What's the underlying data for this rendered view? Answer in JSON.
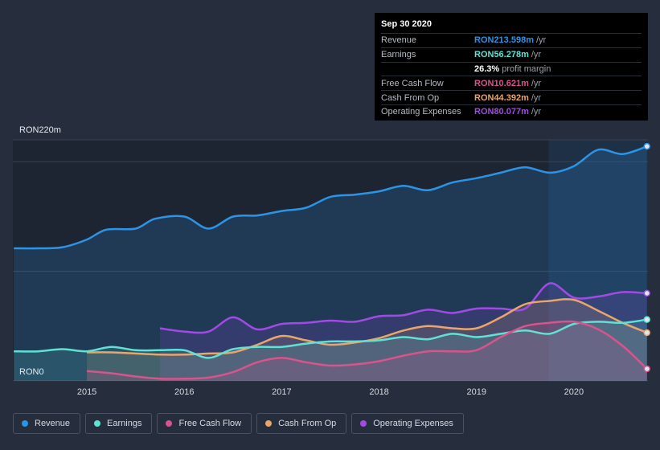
{
  "tooltip": {
    "date": "Sep 30 2020",
    "rows": [
      {
        "label": "Revenue",
        "value": "RON213.598m",
        "unit": "/yr",
        "color": "#2c94e6"
      },
      {
        "label": "Earnings",
        "value": "RON56.278m",
        "unit": "/yr",
        "color": "#5fe2d4"
      },
      {
        "label": "",
        "value": "26.3%",
        "unit": "profit margin",
        "color": "#ffffff"
      },
      {
        "label": "Free Cash Flow",
        "value": "RON10.621m",
        "unit": "/yr",
        "color": "#d9538c"
      },
      {
        "label": "Cash From Op",
        "value": "RON44.392m",
        "unit": "/yr",
        "color": "#e8a66a"
      },
      {
        "label": "Operating Expenses",
        "value": "RON80.077m",
        "unit": "/yr",
        "color": "#a24ae6"
      }
    ]
  },
  "chart_data": {
    "type": "area",
    "ylabel_top": "RON220m",
    "ylabel_bottom": "RON0",
    "ylim": [
      0,
      220
    ],
    "xlim": [
      2014.24,
      2020.76
    ],
    "x_ticks": [
      "2015",
      "2016",
      "2017",
      "2018",
      "2019",
      "2020"
    ],
    "grid": true,
    "legend_position": "bottom",
    "series": [
      {
        "name": "Revenue",
        "color": "#2c94e6",
        "points": [
          [
            2014.25,
            121
          ],
          [
            2014.5,
            121
          ],
          [
            2014.75,
            122
          ],
          [
            2015.0,
            129
          ],
          [
            2015.2,
            138
          ],
          [
            2015.5,
            139
          ],
          [
            2015.7,
            148
          ],
          [
            2016.0,
            150
          ],
          [
            2016.25,
            139
          ],
          [
            2016.5,
            150
          ],
          [
            2016.75,
            151
          ],
          [
            2017.0,
            155
          ],
          [
            2017.25,
            158
          ],
          [
            2017.5,
            168
          ],
          [
            2017.75,
            170
          ],
          [
            2018.0,
            173
          ],
          [
            2018.25,
            178
          ],
          [
            2018.5,
            174
          ],
          [
            2018.75,
            181
          ],
          [
            2019.0,
            185
          ],
          [
            2019.25,
            190
          ],
          [
            2019.5,
            195
          ],
          [
            2019.75,
            190
          ],
          [
            2020.0,
            196
          ],
          [
            2020.25,
            211
          ],
          [
            2020.5,
            207
          ],
          [
            2020.75,
            214
          ]
        ]
      },
      {
        "name": "Earnings",
        "color": "#5fe2d4",
        "points": [
          [
            2014.25,
            27
          ],
          [
            2014.5,
            27
          ],
          [
            2014.75,
            29
          ],
          [
            2015.0,
            27
          ],
          [
            2015.25,
            31
          ],
          [
            2015.5,
            28
          ],
          [
            2015.75,
            28
          ],
          [
            2016.0,
            28
          ],
          [
            2016.25,
            21
          ],
          [
            2016.5,
            29
          ],
          [
            2016.75,
            31
          ],
          [
            2017.0,
            31
          ],
          [
            2017.25,
            34
          ],
          [
            2017.5,
            36
          ],
          [
            2017.75,
            36
          ],
          [
            2018.0,
            37
          ],
          [
            2018.25,
            40
          ],
          [
            2018.5,
            38
          ],
          [
            2018.75,
            43
          ],
          [
            2019.0,
            40
          ],
          [
            2019.25,
            43
          ],
          [
            2019.5,
            46
          ],
          [
            2019.75,
            43
          ],
          [
            2020.0,
            52
          ],
          [
            2020.25,
            54
          ],
          [
            2020.5,
            53
          ],
          [
            2020.75,
            56
          ]
        ]
      },
      {
        "name": "Free Cash Flow",
        "color": "#d9538c",
        "points": [
          [
            2015.0,
            9
          ],
          [
            2015.25,
            7
          ],
          [
            2015.5,
            4
          ],
          [
            2015.75,
            2
          ],
          [
            2016.0,
            2
          ],
          [
            2016.25,
            3
          ],
          [
            2016.5,
            8
          ],
          [
            2016.75,
            17
          ],
          [
            2017.0,
            21
          ],
          [
            2017.25,
            17
          ],
          [
            2017.5,
            14
          ],
          [
            2017.75,
            15
          ],
          [
            2018.0,
            18
          ],
          [
            2018.25,
            23
          ],
          [
            2018.5,
            27
          ],
          [
            2018.75,
            27
          ],
          [
            2019.0,
            28
          ],
          [
            2019.25,
            40
          ],
          [
            2019.5,
            50
          ],
          [
            2019.75,
            53
          ],
          [
            2020.0,
            54
          ],
          [
            2020.25,
            47
          ],
          [
            2020.5,
            32
          ],
          [
            2020.75,
            11
          ]
        ]
      },
      {
        "name": "Cash From Op",
        "color": "#e8a66a",
        "points": [
          [
            2015.0,
            26
          ],
          [
            2015.25,
            26
          ],
          [
            2015.5,
            25
          ],
          [
            2015.75,
            24
          ],
          [
            2016.0,
            24
          ],
          [
            2016.25,
            25
          ],
          [
            2016.5,
            26
          ],
          [
            2016.75,
            33
          ],
          [
            2017.0,
            41
          ],
          [
            2017.25,
            37
          ],
          [
            2017.5,
            33
          ],
          [
            2017.75,
            35
          ],
          [
            2018.0,
            39
          ],
          [
            2018.25,
            46
          ],
          [
            2018.5,
            50
          ],
          [
            2018.75,
            48
          ],
          [
            2019.0,
            48
          ],
          [
            2019.25,
            58
          ],
          [
            2019.5,
            70
          ],
          [
            2019.75,
            73
          ],
          [
            2020.0,
            74
          ],
          [
            2020.25,
            64
          ],
          [
            2020.5,
            53
          ],
          [
            2020.75,
            44
          ]
        ]
      },
      {
        "name": "Operating Expenses",
        "color": "#a24ae6",
        "points": [
          [
            2015.75,
            48
          ],
          [
            2016.0,
            45
          ],
          [
            2016.25,
            45
          ],
          [
            2016.5,
            58
          ],
          [
            2016.75,
            47
          ],
          [
            2017.0,
            52
          ],
          [
            2017.25,
            53
          ],
          [
            2017.5,
            55
          ],
          [
            2017.75,
            54
          ],
          [
            2018.0,
            59
          ],
          [
            2018.25,
            60
          ],
          [
            2018.5,
            65
          ],
          [
            2018.75,
            62
          ],
          [
            2019.0,
            66
          ],
          [
            2019.25,
            66
          ],
          [
            2019.5,
            66
          ],
          [
            2019.75,
            89
          ],
          [
            2020.0,
            76
          ],
          [
            2020.25,
            77
          ],
          [
            2020.5,
            81
          ],
          [
            2020.75,
            80
          ]
        ]
      }
    ]
  },
  "legend": [
    {
      "label": "Revenue",
      "color": "#2c94e6"
    },
    {
      "label": "Earnings",
      "color": "#5fe2d4"
    },
    {
      "label": "Free Cash Flow",
      "color": "#d9538c"
    },
    {
      "label": "Cash From Op",
      "color": "#e8a66a"
    },
    {
      "label": "Operating Expenses",
      "color": "#a24ae6"
    }
  ]
}
